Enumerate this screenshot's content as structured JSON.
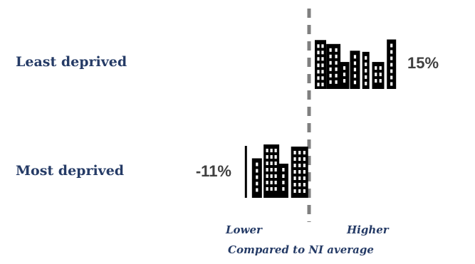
{
  "chart_data": {
    "type": "bar",
    "categories": [
      "Least deprived",
      "Most deprived"
    ],
    "values": [
      15,
      -11
    ],
    "value_labels": [
      "15%",
      "-11%"
    ],
    "units": "%",
    "reference": "NI average",
    "direction_labels": {
      "lower": "Lower",
      "higher": "Higher"
    },
    "xlabel": "Compared to NI average",
    "icon": "city-buildings-icon",
    "colors": {
      "category_text": "#253b66",
      "value_text": "#404040",
      "baseline": "#7f7f7f",
      "bar_icon": "#000000"
    }
  }
}
